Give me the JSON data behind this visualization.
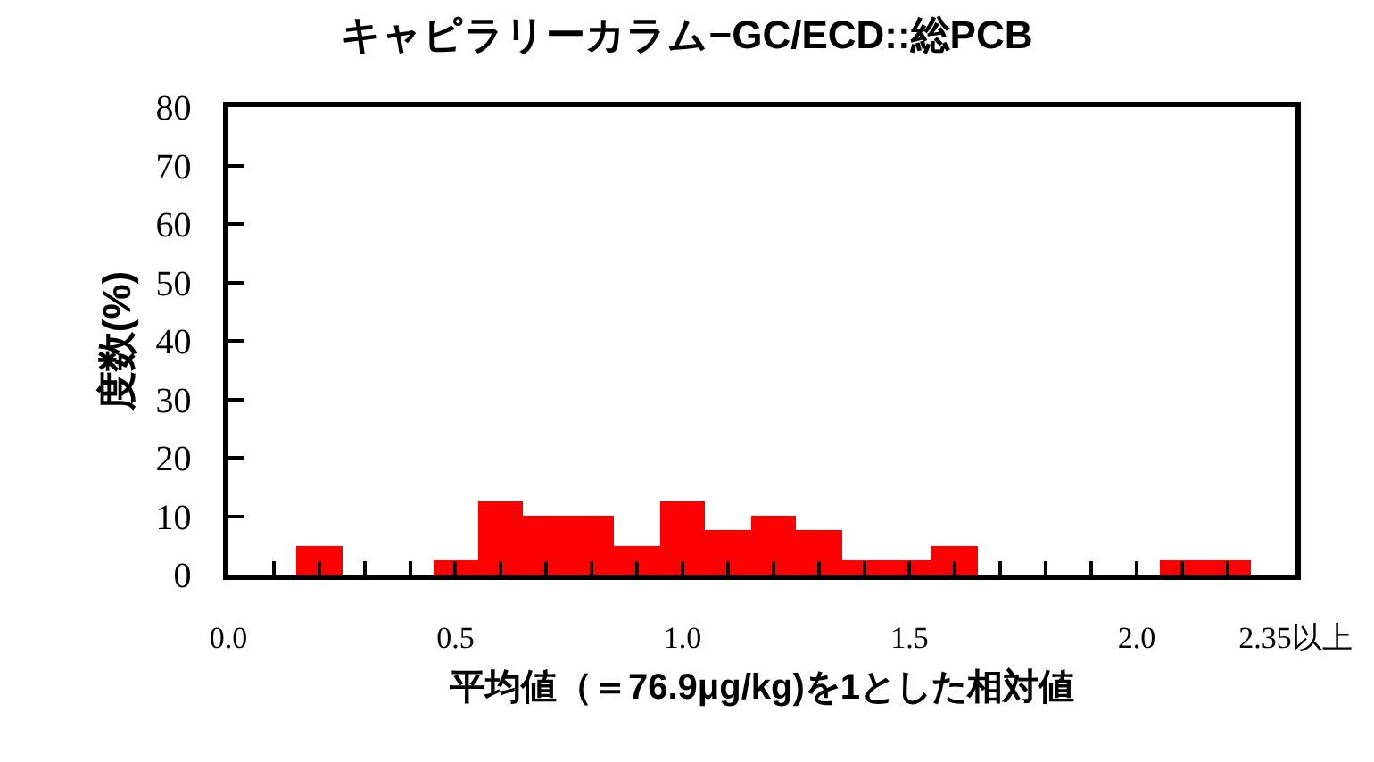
{
  "chart_data": {
    "type": "histogram",
    "title": "キャピラリーカラム−GC/ECD::総PCB",
    "xlabel": "平均値（＝76.9μg/kg)を1とした相対値",
    "ylabel": "度数(%)",
    "bins": [
      0.15,
      0.25,
      0.35,
      0.45,
      0.55,
      0.65,
      0.75,
      0.85,
      0.95,
      1.05,
      1.15,
      1.25,
      1.35,
      1.45,
      1.55,
      1.65,
      1.75,
      1.85,
      1.95,
      2.05,
      2.15,
      2.25
    ],
    "values": [
      5,
      0,
      0,
      2.5,
      12.5,
      10,
      10,
      5,
      12.5,
      7.5,
      10,
      7.5,
      2.5,
      2.5,
      5,
      0,
      0,
      0,
      0,
      2.5,
      2.5
    ],
    "color": "#ff0000",
    "xlim": [
      0,
      2.35
    ],
    "xticks": [
      {
        "value": 0,
        "label": "0.0"
      },
      {
        "value": 0.1,
        "label": null
      },
      {
        "value": 0.2,
        "label": null
      },
      {
        "value": 0.3,
        "label": null
      },
      {
        "value": 0.4,
        "label": null
      },
      0.5,
      {
        "value": 0.6,
        "label": null
      },
      {
        "value": 0.7,
        "label": null
      },
      {
        "value": 0.8,
        "label": null
      },
      {
        "value": 0.9,
        "label": null
      },
      {
        "value": 1,
        "label": "1.0"
      },
      {
        "value": 1.1,
        "label": null
      },
      {
        "value": 1.2,
        "label": null
      },
      {
        "value": 1.3,
        "label": null
      },
      {
        "value": 1.4,
        "label": null
      },
      1.5,
      {
        "value": 1.6,
        "label": null
      },
      {
        "value": 1.7,
        "label": null
      },
      {
        "value": 1.8,
        "label": null
      },
      {
        "value": 1.9,
        "label": null
      },
      {
        "value": 2,
        "label": "2.0"
      },
      {
        "value": 2.1,
        "label": null
      },
      {
        "value": 2.2,
        "label": null
      },
      {
        "value": 2.35,
        "label": "2.35以上"
      }
    ],
    "ylim": [
      0,
      80
    ],
    "yticks": [
      0,
      10,
      20,
      30,
      40,
      50,
      60,
      70,
      80
    ],
    "grid": false,
    "legend": false
  }
}
